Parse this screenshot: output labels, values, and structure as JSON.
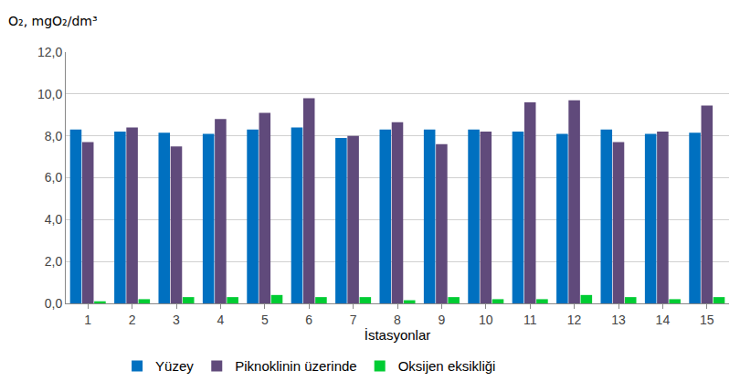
{
  "chart_data": {
    "type": "bar",
    "ylabel": "O₂, mgO₂/dm³",
    "xlabel": "İstasyonlar",
    "categories": [
      "1",
      "2",
      "3",
      "4",
      "5",
      "6",
      "7",
      "8",
      "9",
      "10",
      "11",
      "12",
      "13",
      "14",
      "15"
    ],
    "series": [
      {
        "name": "Yüzey",
        "color": "#0070C0",
        "values": [
          8.3,
          8.2,
          8.15,
          8.1,
          8.3,
          8.4,
          7.9,
          8.3,
          8.3,
          8.3,
          8.2,
          8.1,
          8.3,
          8.1,
          8.15
        ]
      },
      {
        "name": "Piknoklinin üzerinde",
        "color": "#604A7B",
        "values": [
          7.7,
          8.4,
          7.5,
          8.8,
          9.1,
          9.8,
          8.0,
          8.65,
          7.6,
          8.2,
          9.6,
          9.7,
          7.7,
          8.2,
          9.45
        ]
      },
      {
        "name": "Oksijen eksikliği",
        "color": "#00CC33",
        "values": [
          0.1,
          0.2,
          0.3,
          0.3,
          0.4,
          0.3,
          0.3,
          0.15,
          0.3,
          0.2,
          0.2,
          0.4,
          0.3,
          0.2,
          0.3
        ]
      }
    ],
    "ylim": [
      0,
      12
    ],
    "yticks": [
      {
        "value": 0,
        "label": "0,0"
      },
      {
        "value": 2,
        "label": "2,0"
      },
      {
        "value": 4,
        "label": "4,0"
      },
      {
        "value": 6,
        "label": "6,0"
      },
      {
        "value": 8,
        "label": "8,0"
      },
      {
        "value": 10,
        "label": "10,0"
      },
      {
        "value": 12,
        "label": "12,0"
      }
    ],
    "grid": true,
    "legend": "bottom"
  }
}
